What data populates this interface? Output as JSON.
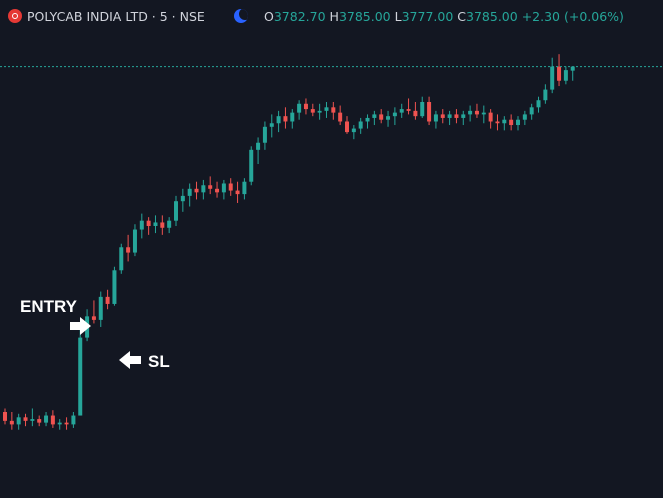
{
  "symbol": {
    "name": "POLYCAB INDIA LTD · 5 · NSE"
  },
  "ohlc": {
    "o_label": "O",
    "o_value": "3782.70",
    "h_label": "H",
    "h_value": "3785.00",
    "l_label": "L",
    "l_value": "3777.00",
    "c_label": "C",
    "c_value": "3785.00",
    "change": "+2.30 (+0.06%)"
  },
  "colors": {
    "background": "#131722",
    "up": "#26a69a",
    "down": "#ef5350",
    "text": "#d1d4dc",
    "last_price_line": "#26a69a"
  },
  "chart_data": {
    "type": "candlestick",
    "interval": "5",
    "ylim": [
      3555,
      3800
    ],
    "last_price": 3785.0,
    "annotations": [
      {
        "text": "ENTRY",
        "arrow": "right"
      },
      {
        "text": "SL",
        "arrow": "left"
      }
    ],
    "candles": [
      [
        3590,
        3592,
        3583,
        3585
      ],
      [
        3585,
        3590,
        3580,
        3583
      ],
      [
        3583,
        3589,
        3580,
        3587
      ],
      [
        3587,
        3589,
        3582,
        3585
      ],
      [
        3585,
        3592,
        3582,
        3586
      ],
      [
        3586,
        3588,
        3582,
        3584
      ],
      [
        3584,
        3590,
        3582,
        3588
      ],
      [
        3588,
        3591,
        3581,
        3583
      ],
      [
        3583,
        3586,
        3580,
        3584
      ],
      [
        3584,
        3587,
        3580,
        3583
      ],
      [
        3583,
        3590,
        3581,
        3588
      ],
      [
        3588,
        3638,
        3588,
        3632
      ],
      [
        3632,
        3648,
        3630,
        3644
      ],
      [
        3644,
        3653,
        3640,
        3642
      ],
      [
        3642,
        3658,
        3638,
        3655
      ],
      [
        3655,
        3659,
        3648,
        3651
      ],
      [
        3651,
        3672,
        3650,
        3670
      ],
      [
        3670,
        3685,
        3668,
        3683
      ],
      [
        3683,
        3690,
        3675,
        3680
      ],
      [
        3680,
        3696,
        3678,
        3693
      ],
      [
        3693,
        3702,
        3688,
        3698
      ],
      [
        3698,
        3700,
        3690,
        3695
      ],
      [
        3695,
        3701,
        3691,
        3697
      ],
      [
        3697,
        3701,
        3690,
        3694
      ],
      [
        3694,
        3700,
        3691,
        3698
      ],
      [
        3698,
        3712,
        3695,
        3709
      ],
      [
        3709,
        3716,
        3703,
        3712
      ],
      [
        3712,
        3719,
        3706,
        3716
      ],
      [
        3716,
        3720,
        3710,
        3714
      ],
      [
        3714,
        3721,
        3710,
        3718
      ],
      [
        3718,
        3723,
        3713,
        3716
      ],
      [
        3716,
        3720,
        3711,
        3714
      ],
      [
        3714,
        3721,
        3710,
        3719
      ],
      [
        3719,
        3722,
        3712,
        3715
      ],
      [
        3715,
        3720,
        3708,
        3713
      ],
      [
        3713,
        3722,
        3710,
        3720
      ],
      [
        3720,
        3740,
        3718,
        3738
      ],
      [
        3738,
        3745,
        3730,
        3742
      ],
      [
        3742,
        3754,
        3738,
        3751
      ],
      [
        3751,
        3758,
        3745,
        3753
      ],
      [
        3753,
        3760,
        3748,
        3757
      ],
      [
        3757,
        3762,
        3750,
        3754
      ],
      [
        3754,
        3761,
        3750,
        3759
      ],
      [
        3759,
        3766,
        3755,
        3764
      ],
      [
        3764,
        3767,
        3758,
        3761
      ],
      [
        3761,
        3764,
        3757,
        3759
      ],
      [
        3759,
        3764,
        3755,
        3760
      ],
      [
        3760,
        3765,
        3756,
        3762
      ],
      [
        3762,
        3765,
        3755,
        3759
      ],
      [
        3759,
        3763,
        3752,
        3754
      ],
      [
        3754,
        3757,
        3747,
        3748
      ],
      [
        3748,
        3752,
        3744,
        3750
      ],
      [
        3750,
        3756,
        3747,
        3754
      ],
      [
        3754,
        3758,
        3750,
        3756
      ],
      [
        3756,
        3760,
        3752,
        3758
      ],
      [
        3758,
        3761,
        3753,
        3755
      ],
      [
        3755,
        3760,
        3751,
        3757
      ],
      [
        3757,
        3762,
        3752,
        3759
      ],
      [
        3759,
        3764,
        3756,
        3761
      ],
      [
        3761,
        3767,
        3758,
        3760
      ],
      [
        3760,
        3765,
        3755,
        3757
      ],
      [
        3757,
        3768,
        3756,
        3765
      ],
      [
        3765,
        3768,
        3752,
        3754
      ],
      [
        3754,
        3760,
        3750,
        3758
      ],
      [
        3758,
        3761,
        3753,
        3756
      ],
      [
        3756,
        3760,
        3752,
        3758
      ],
      [
        3758,
        3761,
        3753,
        3756
      ],
      [
        3756,
        3760,
        3752,
        3758
      ],
      [
        3758,
        3763,
        3754,
        3760
      ],
      [
        3760,
        3764,
        3756,
        3758
      ],
      [
        3758,
        3763,
        3753,
        3759
      ],
      [
        3759,
        3761,
        3750,
        3754
      ],
      [
        3754,
        3758,
        3749,
        3753
      ],
      [
        3753,
        3757,
        3749,
        3755
      ],
      [
        3755,
        3758,
        3749,
        3752
      ],
      [
        3752,
        3757,
        3749,
        3755
      ],
      [
        3755,
        3760,
        3752,
        3758
      ],
      [
        3758,
        3764,
        3755,
        3762
      ],
      [
        3762,
        3768,
        3759,
        3766
      ],
      [
        3766,
        3775,
        3764,
        3772
      ],
      [
        3772,
        3790,
        3770,
        3785
      ],
      [
        3785,
        3792,
        3774,
        3777
      ],
      [
        3777,
        3785,
        3775,
        3783
      ],
      [
        3782.7,
        3785,
        3777,
        3785
      ]
    ]
  }
}
